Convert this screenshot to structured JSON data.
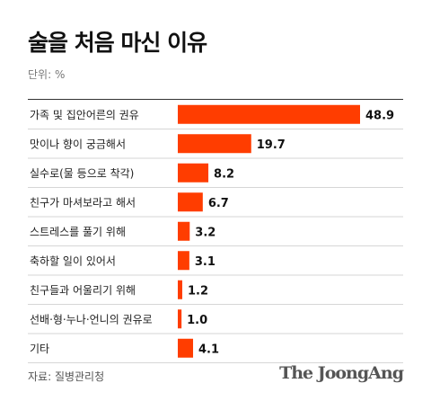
{
  "title": "술을 처음 마신 이유",
  "unit_label": "단위: %",
  "source": "자료: 질병관리청",
  "brand": "The JoongAng",
  "colors": {
    "bar": "#ff3d00",
    "separator": "#d6d6d6",
    "axis": "#333333",
    "text": "#222222"
  },
  "chart_data": {
    "type": "bar",
    "orientation": "horizontal",
    "categories": [
      "가족 및 집안어른의 권유",
      "맛이나 향이 궁금해서",
      "실수로(물 등으로 착각)",
      "친구가 마셔보라고 해서",
      "스트레스를 풀기 위해",
      "축하할 일이 있어서",
      "친구들과 어울리기 위해",
      "선배·형·누나·언니의 권유로",
      "기타"
    ],
    "values": [
      48.9,
      19.7,
      8.2,
      6.7,
      3.2,
      3.1,
      1.2,
      1.0,
      4.1
    ],
    "value_labels": [
      "48.9",
      "19.7",
      "8.2",
      "6.7",
      "3.2",
      "3.1",
      "1.2",
      "1.0",
      "4.1"
    ],
    "xlim": [
      0,
      48.9
    ],
    "grid": false,
    "legend": "none"
  }
}
